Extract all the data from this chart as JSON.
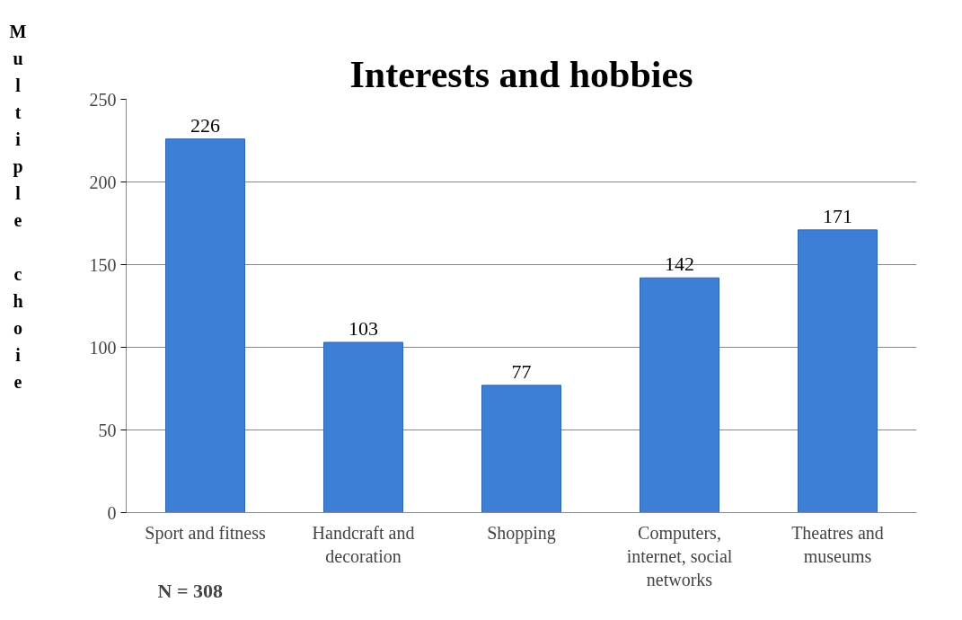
{
  "chart_data": {
    "type": "bar",
    "title": "Interests and hobbies",
    "ylabel": "Multiple choie",
    "categories": [
      "Sport and fitness",
      "Handcraft and decoration",
      "Shopping",
      "Computers, internet, social networks",
      "Theatres and museums"
    ],
    "values": [
      226,
      103,
      77,
      142,
      171
    ],
    "color": "#3d7fd6",
    "ylim": [
      0,
      250
    ],
    "yticks": [
      0,
      50,
      100,
      150,
      200,
      250
    ],
    "grid": "y",
    "data_labels": true,
    "annotations": [
      "N = 308"
    ]
  }
}
